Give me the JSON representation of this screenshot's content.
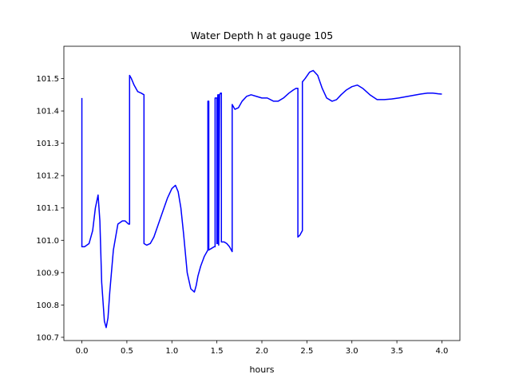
{
  "chart_data": {
    "type": "line",
    "title": "Water Depth h at gauge 105",
    "xlabel": "hours",
    "ylabel": "",
    "xlim": [
      -0.2,
      4.2
    ],
    "ylim": [
      100.69,
      101.6
    ],
    "grid": false,
    "x_ticks": [
      0.0,
      0.5,
      1.0,
      1.5,
      2.0,
      2.5,
      3.0,
      3.5,
      4.0
    ],
    "x_tick_labels": [
      "0.0",
      "0.5",
      "1.0",
      "1.5",
      "2.0",
      "2.5",
      "3.0",
      "3.5",
      "4.0"
    ],
    "y_ticks": [
      100.7,
      100.8,
      100.9,
      101.0,
      101.1,
      101.2,
      101.3,
      101.4,
      101.5
    ],
    "y_tick_labels": [
      "100.7",
      "100.8",
      "100.9",
      "101.0",
      "101.1",
      "101.2",
      "101.3",
      "101.4",
      "101.5"
    ],
    "series": [
      {
        "color": "#0000ff",
        "x": [
          0.0,
          0.0,
          0.03,
          0.08,
          0.12,
          0.15,
          0.18,
          0.2,
          0.22,
          0.25,
          0.27,
          0.29,
          0.31,
          0.35,
          0.4,
          0.45,
          0.48,
          0.52,
          0.53,
          0.53,
          0.55,
          0.58,
          0.62,
          0.66,
          0.69,
          0.69,
          0.72,
          0.76,
          0.8,
          0.85,
          0.9,
          0.95,
          1.0,
          1.04,
          1.07,
          1.1,
          1.13,
          1.17,
          1.21,
          1.25,
          1.27,
          1.29,
          1.32,
          1.36,
          1.4,
          1.4,
          1.41,
          1.41,
          1.44,
          1.47,
          1.48,
          1.48,
          1.5,
          1.5,
          1.51,
          1.51,
          1.52,
          1.52,
          1.53,
          1.54,
          1.55,
          1.55,
          1.58,
          1.61,
          1.64,
          1.67,
          1.67,
          1.7,
          1.74,
          1.78,
          1.83,
          1.88,
          1.94,
          2.0,
          2.06,
          2.13,
          2.18,
          2.24,
          2.3,
          2.35,
          2.38,
          2.4,
          2.4,
          2.42,
          2.45,
          2.45,
          2.48,
          2.53,
          2.57,
          2.62,
          2.67,
          2.72,
          2.78,
          2.83,
          2.88,
          2.94,
          3.0,
          3.06,
          3.12,
          3.2,
          3.28,
          3.36,
          3.44,
          3.52,
          3.6,
          3.68,
          3.76,
          3.84,
          3.9,
          3.96,
          4.0
        ],
        "y": [
          101.44,
          100.98,
          100.98,
          100.99,
          101.03,
          101.1,
          101.14,
          101.06,
          100.87,
          100.75,
          100.73,
          100.76,
          100.84,
          100.97,
          101.05,
          101.06,
          101.06,
          101.05,
          101.05,
          101.51,
          101.5,
          101.48,
          101.46,
          101.455,
          101.45,
          100.99,
          100.985,
          100.99,
          101.01,
          101.05,
          101.09,
          101.13,
          101.16,
          101.17,
          101.15,
          101.1,
          101.02,
          100.9,
          100.85,
          100.84,
          100.86,
          100.89,
          100.92,
          100.95,
          100.97,
          101.43,
          101.43,
          100.97,
          100.975,
          100.98,
          100.98,
          101.44,
          101.44,
          100.99,
          100.99,
          101.45,
          101.45,
          100.985,
          101.45,
          101.455,
          101.455,
          100.995,
          100.995,
          100.99,
          100.98,
          100.965,
          101.42,
          101.405,
          101.41,
          101.43,
          101.445,
          101.45,
          101.445,
          101.44,
          101.44,
          101.43,
          101.43,
          101.44,
          101.455,
          101.465,
          101.47,
          101.47,
          101.01,
          101.015,
          101.03,
          101.49,
          101.5,
          101.52,
          101.525,
          101.51,
          101.47,
          101.44,
          101.43,
          101.435,
          101.45,
          101.465,
          101.475,
          101.48,
          101.47,
          101.45,
          101.435,
          101.435,
          101.437,
          101.44,
          101.444,
          101.448,
          101.452,
          101.455,
          101.455,
          101.453,
          101.452
        ]
      }
    ]
  }
}
